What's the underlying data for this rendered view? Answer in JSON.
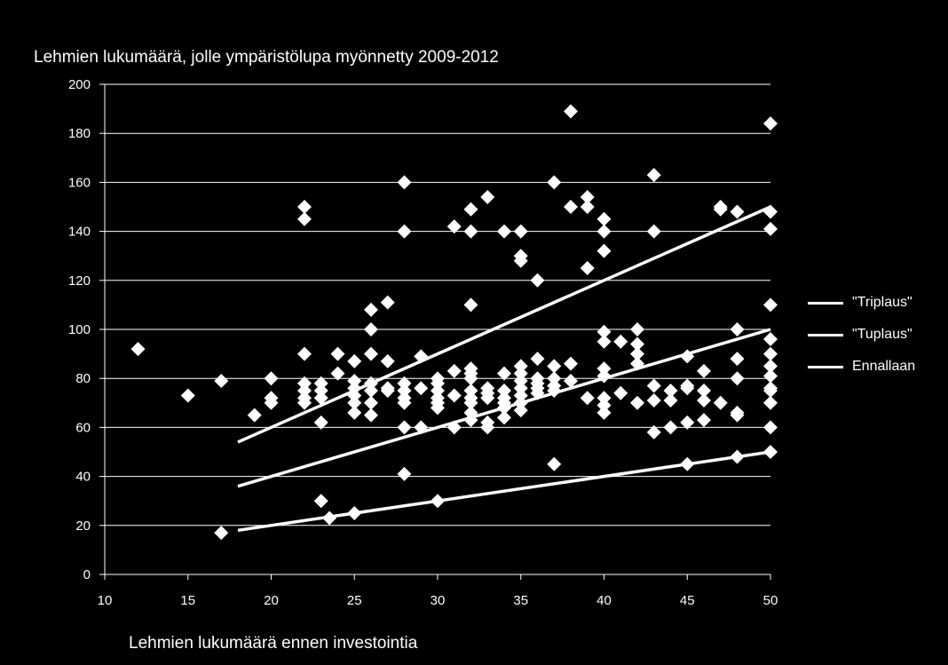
{
  "chart_data": {
    "type": "scatter",
    "title": "Lehmien lukumäärä, jolle ympäristölupa myönnetty 2009-2012",
    "xlabel": "Lehmien lukumäärä ennen investointia",
    "ylabel": "",
    "xlim": [
      10,
      50
    ],
    "ylim": [
      0,
      200
    ],
    "xticks": [
      10,
      15,
      20,
      25,
      30,
      35,
      40,
      45,
      50
    ],
    "yticks": [
      0,
      20,
      40,
      60,
      80,
      100,
      120,
      140,
      160,
      180,
      200
    ],
    "grid": "horizontal",
    "legend_position": "right",
    "colors": {
      "background": "#000000",
      "marks": "#ffffff",
      "grid": "#ffffff"
    },
    "points": [
      [
        12,
        92
      ],
      [
        15,
        73
      ],
      [
        17,
        79
      ],
      [
        17,
        17
      ],
      [
        19,
        65
      ],
      [
        20,
        80
      ],
      [
        20,
        72
      ],
      [
        20,
        70
      ],
      [
        22,
        150
      ],
      [
        22,
        145
      ],
      [
        22,
        90
      ],
      [
        22,
        78
      ],
      [
        22,
        75
      ],
      [
        22,
        72
      ],
      [
        22,
        70
      ],
      [
        23,
        78
      ],
      [
        23,
        75
      ],
      [
        23,
        72
      ],
      [
        23,
        62
      ],
      [
        23,
        30
      ],
      [
        23.5,
        23
      ],
      [
        24,
        90
      ],
      [
        24,
        82
      ],
      [
        25,
        87
      ],
      [
        25,
        79
      ],
      [
        25,
        76
      ],
      [
        25,
        73
      ],
      [
        25,
        70
      ],
      [
        25,
        66
      ],
      [
        25,
        25
      ],
      [
        26,
        108
      ],
      [
        26,
        100
      ],
      [
        26,
        90
      ],
      [
        26,
        78
      ],
      [
        26,
        75
      ],
      [
        26,
        70
      ],
      [
        26,
        65
      ],
      [
        27,
        111
      ],
      [
        27,
        87
      ],
      [
        27,
        76
      ],
      [
        27,
        75
      ],
      [
        28,
        160
      ],
      [
        28,
        140
      ],
      [
        28,
        78
      ],
      [
        28,
        75
      ],
      [
        28,
        72
      ],
      [
        28,
        70
      ],
      [
        28,
        60
      ],
      [
        28,
        41
      ],
      [
        29,
        89
      ],
      [
        29,
        76
      ],
      [
        29,
        60
      ],
      [
        30,
        80
      ],
      [
        30,
        78
      ],
      [
        30,
        75
      ],
      [
        30,
        72
      ],
      [
        30,
        70
      ],
      [
        30,
        68
      ],
      [
        30,
        30
      ],
      [
        31,
        142
      ],
      [
        31,
        83
      ],
      [
        31,
        73
      ],
      [
        31,
        60
      ],
      [
        32,
        149
      ],
      [
        32,
        140
      ],
      [
        32,
        110
      ],
      [
        32,
        84
      ],
      [
        32,
        82
      ],
      [
        32,
        80
      ],
      [
        32,
        75
      ],
      [
        32,
        72
      ],
      [
        32,
        70
      ],
      [
        32,
        66
      ],
      [
        32,
        63
      ],
      [
        33,
        154
      ],
      [
        33,
        76
      ],
      [
        33,
        74
      ],
      [
        33,
        72
      ],
      [
        33,
        62
      ],
      [
        33,
        60
      ],
      [
        34,
        140
      ],
      [
        34,
        82
      ],
      [
        34,
        75
      ],
      [
        34,
        72
      ],
      [
        34,
        70
      ],
      [
        34,
        68
      ],
      [
        34,
        64
      ],
      [
        35,
        140
      ],
      [
        35,
        130
      ],
      [
        35,
        128
      ],
      [
        35,
        85
      ],
      [
        35,
        82
      ],
      [
        35,
        79
      ],
      [
        35,
        76
      ],
      [
        35,
        73
      ],
      [
        35,
        70
      ],
      [
        35,
        67
      ],
      [
        36,
        120
      ],
      [
        36,
        88
      ],
      [
        36,
        80
      ],
      [
        36,
        78
      ],
      [
        36,
        76
      ],
      [
        36,
        74
      ],
      [
        37,
        160
      ],
      [
        37,
        85
      ],
      [
        37,
        80
      ],
      [
        37,
        77
      ],
      [
        37,
        75
      ],
      [
        37,
        45
      ],
      [
        38,
        189
      ],
      [
        38,
        150
      ],
      [
        38,
        86
      ],
      [
        38,
        79
      ],
      [
        39,
        154
      ],
      [
        39,
        150
      ],
      [
        39,
        125
      ],
      [
        39,
        72
      ],
      [
        40,
        145
      ],
      [
        40,
        140
      ],
      [
        40,
        132
      ],
      [
        40,
        99
      ],
      [
        40,
        95
      ],
      [
        40,
        84
      ],
      [
        40,
        81
      ],
      [
        40,
        72
      ],
      [
        40,
        69
      ],
      [
        40,
        66
      ],
      [
        41,
        95
      ],
      [
        41,
        74
      ],
      [
        42,
        100
      ],
      [
        42,
        94
      ],
      [
        42,
        90
      ],
      [
        42,
        86
      ],
      [
        42,
        70
      ],
      [
        43,
        163
      ],
      [
        43,
        140
      ],
      [
        43,
        77
      ],
      [
        43,
        71
      ],
      [
        43,
        58
      ],
      [
        44,
        75
      ],
      [
        44,
        71
      ],
      [
        44,
        60
      ],
      [
        45,
        89
      ],
      [
        45,
        77
      ],
      [
        45,
        76
      ],
      [
        45,
        62
      ],
      [
        45,
        45
      ],
      [
        46,
        83
      ],
      [
        46,
        75
      ],
      [
        46,
        71
      ],
      [
        46,
        63
      ],
      [
        47,
        150
      ],
      [
        47,
        149
      ],
      [
        47,
        70
      ],
      [
        48,
        148
      ],
      [
        48,
        100
      ],
      [
        48,
        88
      ],
      [
        48,
        80
      ],
      [
        48,
        66
      ],
      [
        48,
        65
      ],
      [
        48,
        48
      ],
      [
        50,
        184
      ],
      [
        50,
        148
      ],
      [
        50,
        141
      ],
      [
        50,
        110
      ],
      [
        50,
        96
      ],
      [
        50,
        90
      ],
      [
        50,
        85
      ],
      [
        50,
        81
      ],
      [
        50,
        76
      ],
      [
        50,
        75
      ],
      [
        50,
        70
      ],
      [
        50,
        60
      ],
      [
        50,
        50
      ]
    ],
    "series": [
      {
        "name": "\"Triplaus\"",
        "x": [
          18,
          50
        ],
        "y": [
          54,
          150
        ]
      },
      {
        "name": "\"Tuplaus\"",
        "x": [
          18,
          50
        ],
        "y": [
          36,
          100
        ]
      },
      {
        "name": "Ennallaan",
        "x": [
          18,
          50
        ],
        "y": [
          18,
          50
        ]
      }
    ]
  }
}
